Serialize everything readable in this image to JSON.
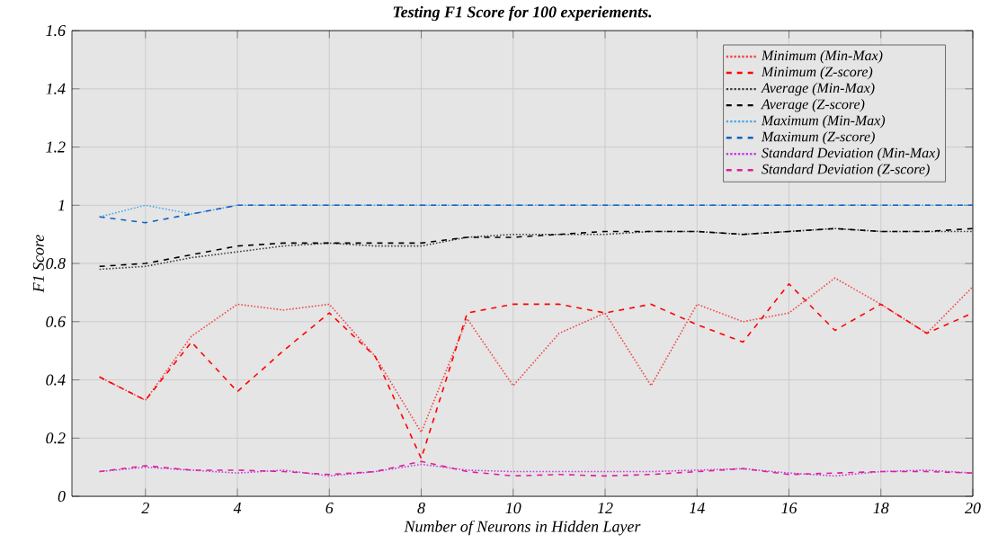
{
  "chart_data": {
    "type": "line",
    "title": "Testing F1 Score for 100 experiements.",
    "xlabel": "Number of Neurons in Hidden Layer",
    "ylabel": "F1 Score",
    "x": [
      1,
      2,
      3,
      4,
      5,
      6,
      7,
      8,
      9,
      10,
      11,
      12,
      13,
      14,
      15,
      16,
      17,
      18,
      19,
      20
    ],
    "xlim": [
      0.4,
      20
    ],
    "xticks": [
      2,
      4,
      6,
      8,
      10,
      12,
      14,
      16,
      18,
      20
    ],
    "ylim": [
      0,
      1.6
    ],
    "yticks": [
      0,
      0.2,
      0.4,
      0.6,
      0.8,
      1,
      1.2,
      1.4,
      1.6
    ],
    "grid": true,
    "legend": "top right",
    "series": [
      {
        "name": "Minimum (Min-Max)",
        "color": "#f04848",
        "line_style": "dotted",
        "values": [
          0.41,
          0.33,
          0.55,
          0.66,
          0.64,
          0.66,
          0.48,
          0.22,
          0.61,
          0.38,
          0.56,
          0.63,
          0.38,
          0.66,
          0.6,
          0.63,
          0.75,
          0.66,
          0.56,
          0.72
        ]
      },
      {
        "name": "Minimum (Z-score)",
        "color": "#ff0000",
        "line_style": "dashed",
        "values": [
          0.41,
          0.33,
          0.53,
          0.36,
          0.5,
          0.63,
          0.48,
          0.13,
          0.63,
          0.66,
          0.66,
          0.63,
          0.66,
          0.59,
          0.53,
          0.73,
          0.57,
          0.66,
          0.56,
          0.63
        ]
      },
      {
        "name": "Average (Min-Max)",
        "color": "#404040",
        "line_style": "dotted",
        "values": [
          0.78,
          0.79,
          0.82,
          0.84,
          0.86,
          0.87,
          0.86,
          0.86,
          0.89,
          0.9,
          0.9,
          0.9,
          0.91,
          0.91,
          0.9,
          0.91,
          0.92,
          0.91,
          0.91,
          0.91
        ]
      },
      {
        "name": "Average (Z-score)",
        "color": "#000000",
        "line_style": "dashed",
        "values": [
          0.79,
          0.8,
          0.83,
          0.86,
          0.87,
          0.87,
          0.87,
          0.87,
          0.89,
          0.89,
          0.9,
          0.91,
          0.91,
          0.91,
          0.9,
          0.91,
          0.92,
          0.91,
          0.91,
          0.92
        ]
      },
      {
        "name": "Maximum (Min-Max)",
        "color": "#48a8e8",
        "line_style": "dotted",
        "values": [
          0.96,
          1,
          0.97,
          1,
          1,
          1,
          1,
          1,
          1,
          1,
          1,
          1,
          1,
          1,
          1,
          1,
          1,
          1,
          1,
          1
        ]
      },
      {
        "name": "Maximum (Z-score)",
        "color": "#1060c0",
        "line_style": "dashed",
        "values": [
          0.96,
          0.94,
          0.97,
          1,
          1,
          1,
          1,
          1,
          1,
          1,
          1,
          1,
          1,
          1,
          1,
          1,
          1,
          1,
          1,
          1
        ]
      },
      {
        "name": "Standard Deviation (Min-Max)",
        "color": "#c040e0",
        "line_style": "dotted",
        "values": [
          0.085,
          0.1,
          0.09,
          0.08,
          0.09,
          0.07,
          0.085,
          0.11,
          0.09,
          0.085,
          0.085,
          0.085,
          0.085,
          0.09,
          0.095,
          0.08,
          0.07,
          0.085,
          0.09,
          0.08
        ]
      },
      {
        "name": "Standard Deviation (Z-score)",
        "color": "#e0209a",
        "line_style": "dashed",
        "values": [
          0.085,
          0.105,
          0.09,
          0.09,
          0.085,
          0.075,
          0.085,
          0.12,
          0.085,
          0.07,
          0.075,
          0.07,
          0.075,
          0.085,
          0.095,
          0.075,
          0.08,
          0.085,
          0.085,
          0.08
        ]
      }
    ]
  }
}
